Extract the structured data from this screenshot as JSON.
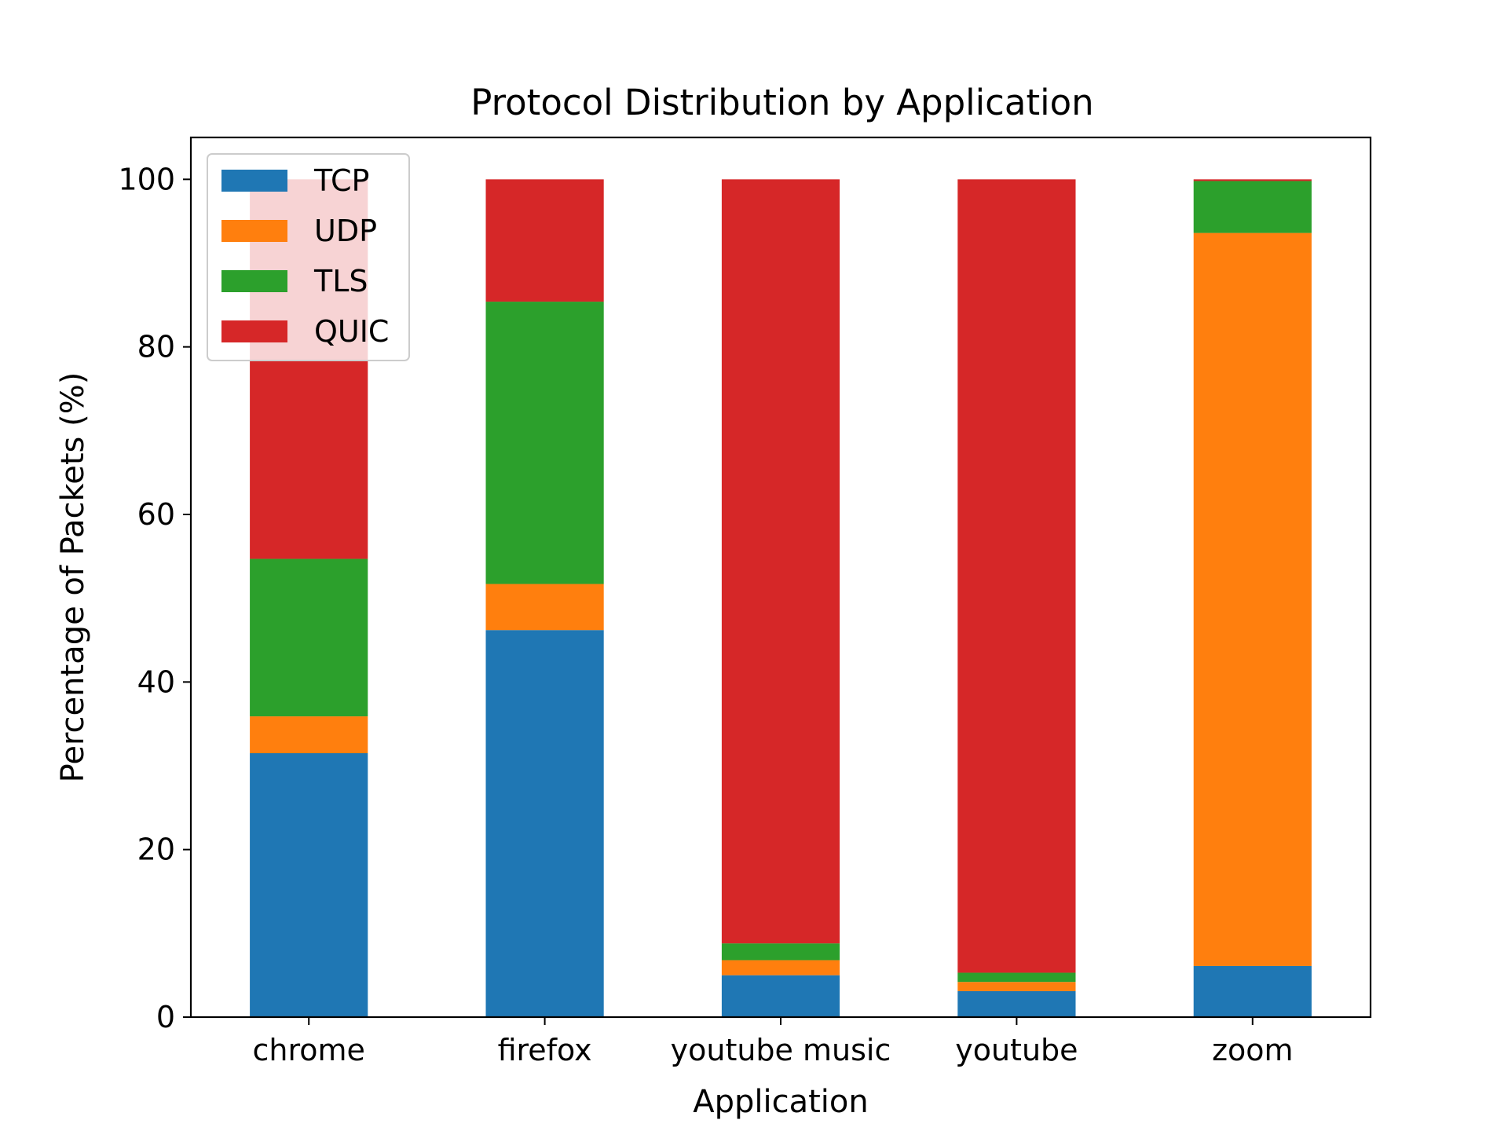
{
  "chart_data": {
    "type": "bar",
    "stacked": true,
    "title": "Protocol Distribution by Application",
    "xlabel": "Application",
    "ylabel": "Percentage of Packets (%)",
    "categories": [
      "chrome",
      "firefox",
      "youtube music",
      "youtube",
      "zoom"
    ],
    "series": [
      {
        "name": "TCP",
        "color": "#1f77b4",
        "values": [
          31.5,
          46.2,
          5.0,
          3.1,
          6.1
        ]
      },
      {
        "name": "UDP",
        "color": "#ff7f0e",
        "values": [
          4.4,
          5.5,
          1.8,
          1.1,
          87.5
        ]
      },
      {
        "name": "TLS",
        "color": "#2ca02c",
        "values": [
          18.8,
          33.7,
          2.0,
          1.1,
          6.2
        ]
      },
      {
        "name": "QUIC",
        "color": "#d62728",
        "values": [
          45.3,
          14.6,
          91.2,
          94.7,
          0.2
        ]
      }
    ],
    "yticks": [
      0,
      20,
      40,
      60,
      80,
      100
    ],
    "ylim": [
      0,
      105
    ],
    "grid": false,
    "legend_position": "top-left"
  }
}
